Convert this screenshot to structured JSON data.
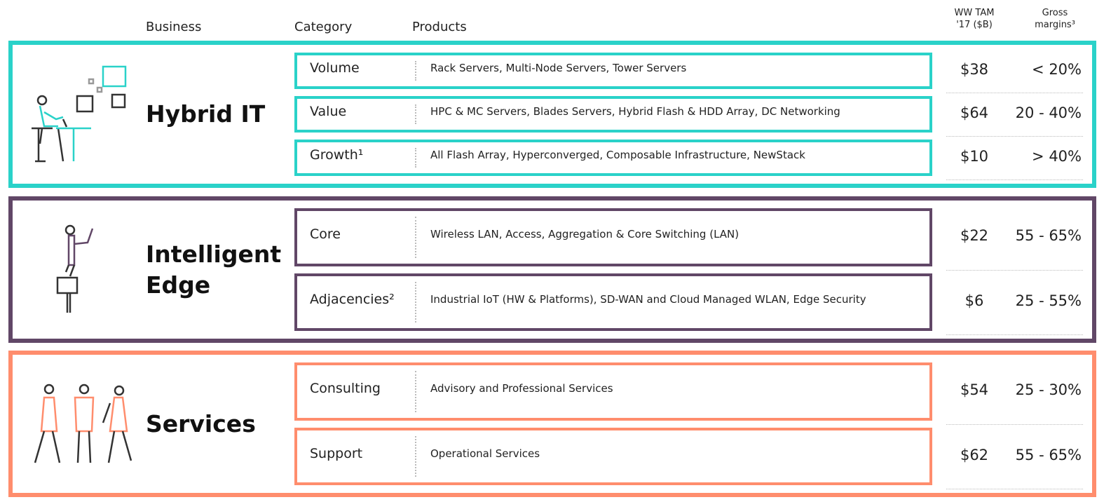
{
  "header": {
    "business": "Business",
    "category": "Category",
    "products": "Products",
    "tam": [
      "WW TAM",
      "'17 ($B)"
    ],
    "margins": [
      "Gross",
      "margins³"
    ]
  },
  "sections": [
    {
      "business": "Hybrid IT",
      "color": "#2ad2c9",
      "rows": [
        {
          "category": "Volume",
          "products": "Rack Servers, Multi-Node Servers, Tower Servers",
          "tam": "$38",
          "margin": "< 20%"
        },
        {
          "category": "Value",
          "products": "HPC & MC Servers, Blades Servers, Hybrid Flash & HDD Array, DC Networking",
          "tam": "$64",
          "margin": "20 - 40%"
        },
        {
          "category": "Growth¹",
          "products": "All Flash Array, Hyperconverged, Composable Infrastructure, NewStack",
          "tam": "$10",
          "margin": "> 40%"
        }
      ]
    },
    {
      "business": "Intelligent Edge",
      "color": "#614767",
      "rows": [
        {
          "category": "Core",
          "products": "Wireless LAN, Access, Aggregation & Core Switching (LAN)",
          "tam": "$22",
          "margin": "55 - 65%"
        },
        {
          "category": "Adjacencies²",
          "products": "Industrial IoT (HW & Platforms), SD-WAN and Cloud Managed WLAN, Edge Security",
          "tam": "$6",
          "margin": "25 - 55%"
        }
      ]
    },
    {
      "business": "Services",
      "color": "#ff8d6d",
      "rows": [
        {
          "category": "Consulting",
          "products": "Advisory and Professional Services",
          "tam": "$54",
          "margin": "25 - 30%"
        },
        {
          "category": "Support",
          "products": "Operational Services",
          "tam": "$62",
          "margin": "55 - 65%"
        }
      ]
    }
  ]
}
